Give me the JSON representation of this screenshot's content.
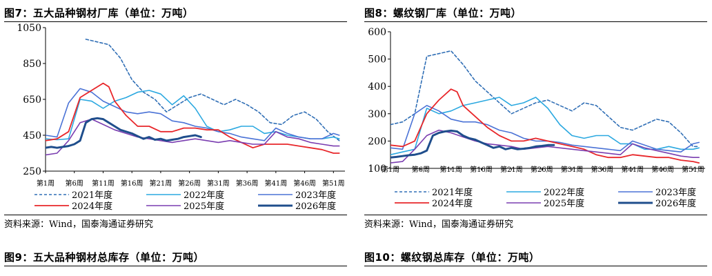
{
  "figures": [
    {
      "title": "图7：五大品种钢材厂库（单位：万吨）",
      "source": "资料来源：Wind，国泰海通证券研究"
    },
    {
      "title": "图8：螺纹钢厂库（单位：万吨）",
      "source": "资料来源：Wind，国泰海通证券研究"
    },
    {
      "title": "图9：五大品种钢材总库存（单位：万吨）"
    },
    {
      "title": "图10：螺纹钢总库存（单位：万吨）"
    }
  ],
  "chart_data": [
    {
      "type": "line",
      "title": "",
      "xlabel": "",
      "ylabel": "",
      "x_range": [
        1,
        53
      ],
      "ylim": [
        250,
        1050
      ],
      "y_ticks": [
        "1050",
        "850",
        "650",
        "450",
        "250"
      ],
      "x_ticks": [
        "第1周",
        "第6周",
        "第11周",
        "第16周",
        "第21周",
        "第26周",
        "第31周",
        "第36周",
        "第41周",
        "第46周",
        "第51周"
      ],
      "legend_position": "bottom",
      "series": [
        {
          "name": "2021年度",
          "color": "#2f6eb5",
          "dash": true,
          "width": 1.6,
          "x": [
            8,
            10,
            12,
            14,
            16,
            18,
            20,
            22,
            24,
            26,
            28,
            30,
            32,
            34,
            36,
            38,
            40,
            42,
            44,
            46,
            48,
            50,
            52
          ],
          "values": [
            985,
            970,
            955,
            880,
            760,
            690,
            650,
            580,
            620,
            660,
            680,
            650,
            620,
            650,
            620,
            580,
            520,
            510,
            560,
            580,
            540,
            470,
            420
          ]
        },
        {
          "name": "2022年度",
          "color": "#2aa8e0",
          "dash": false,
          "width": 1.6,
          "x": [
            1,
            3,
            5,
            7,
            9,
            11,
            13,
            15,
            17,
            19,
            21,
            23,
            25,
            27,
            29,
            31,
            33,
            35,
            37,
            39,
            41,
            43,
            45,
            47,
            49,
            51,
            52
          ],
          "values": [
            430,
            425,
            430,
            650,
            640,
            600,
            640,
            660,
            690,
            700,
            680,
            620,
            670,
            600,
            500,
            470,
            480,
            500,
            500,
            460,
            470,
            450,
            440,
            430,
            430,
            440,
            430
          ]
        },
        {
          "name": "2023年度",
          "color": "#4a72d6",
          "dash": false,
          "width": 1.6,
          "x": [
            1,
            3,
            5,
            7,
            9,
            11,
            13,
            15,
            17,
            19,
            21,
            23,
            25,
            27,
            29,
            31,
            33,
            35,
            37,
            39,
            41,
            43,
            45,
            47,
            49,
            51,
            52
          ],
          "values": [
            450,
            440,
            630,
            710,
            690,
            640,
            610,
            580,
            570,
            580,
            570,
            530,
            520,
            500,
            490,
            470,
            460,
            440,
            430,
            420,
            490,
            460,
            440,
            430,
            430,
            460,
            450
          ]
        },
        {
          "name": "2024年度",
          "color": "#e8262a",
          "dash": false,
          "width": 1.8,
          "x": [
            1,
            3,
            5,
            7,
            9,
            11,
            12,
            13,
            15,
            17,
            19,
            21,
            23,
            25,
            27,
            29,
            31,
            33,
            35,
            37,
            39,
            41,
            43,
            45,
            47,
            49,
            51,
            52
          ],
          "values": [
            420,
            430,
            470,
            660,
            700,
            740,
            720,
            640,
            560,
            500,
            500,
            470,
            470,
            490,
            490,
            480,
            480,
            440,
            410,
            380,
            400,
            400,
            400,
            390,
            380,
            370,
            350,
            350
          ]
        },
        {
          "name": "2025年度",
          "color": "#7a3db0",
          "dash": false,
          "width": 1.6,
          "x": [
            1,
            3,
            5,
            7,
            9,
            11,
            13,
            15,
            17,
            19,
            21,
            23,
            25,
            27,
            29,
            31,
            33,
            35,
            37,
            39,
            41,
            43,
            45,
            47,
            49,
            51,
            52
          ],
          "values": [
            340,
            350,
            420,
            520,
            540,
            510,
            480,
            460,
            440,
            430,
            420,
            410,
            420,
            430,
            420,
            410,
            420,
            410,
            400,
            400,
            470,
            440,
            430,
            410,
            400,
            390,
            390
          ]
        },
        {
          "name": "2026年度",
          "color": "#1f4e8c",
          "dash": false,
          "width": 3,
          "x": [
            1,
            2,
            3,
            4,
            5,
            6,
            7,
            8,
            9,
            10,
            11,
            12,
            13,
            14,
            15,
            16,
            17,
            18,
            19,
            20,
            21,
            22,
            23,
            24,
            25,
            26,
            27,
            28
          ],
          "values": [
            380,
            385,
            380,
            385,
            390,
            400,
            420,
            520,
            540,
            545,
            540,
            520,
            500,
            480,
            470,
            460,
            445,
            430,
            440,
            425,
            430,
            420,
            425,
            430,
            440,
            445,
            450,
            440
          ]
        }
      ]
    },
    {
      "type": "line",
      "title": "",
      "xlabel": "",
      "ylabel": "",
      "x_range": [
        1,
        53
      ],
      "ylim": [
        100,
        600
      ],
      "y_ticks": [
        "600",
        "500",
        "400",
        "300",
        "200",
        "100"
      ],
      "x_ticks": [
        "第1周",
        "第6周",
        "第11周",
        "第16周",
        "第21周",
        "第26周",
        "第31周",
        "第36周",
        "第41周",
        "第46周",
        "第51周"
      ],
      "legend_position": "bottom",
      "series": [
        {
          "name": "2021年度",
          "color": "#2f6eb5",
          "dash": true,
          "width": 1.6,
          "x": [
            1,
            3,
            5,
            7,
            9,
            11,
            13,
            15,
            17,
            19,
            21,
            23,
            25,
            27,
            29,
            31,
            33,
            35,
            37,
            39,
            41,
            43,
            45,
            47,
            49,
            51,
            52
          ],
          "values": [
            260,
            270,
            300,
            510,
            520,
            530,
            480,
            420,
            380,
            340,
            300,
            320,
            340,
            350,
            330,
            310,
            340,
            330,
            290,
            250,
            240,
            260,
            280,
            270,
            230,
            180,
            180
          ]
        },
        {
          "name": "2022年度",
          "color": "#2aa8e0",
          "dash": false,
          "width": 1.6,
          "x": [
            1,
            3,
            5,
            7,
            9,
            11,
            13,
            15,
            17,
            19,
            21,
            23,
            25,
            27,
            29,
            31,
            33,
            35,
            37,
            39,
            41,
            43,
            45,
            47,
            49,
            51,
            52
          ],
          "values": [
            150,
            160,
            170,
            320,
            300,
            310,
            330,
            340,
            350,
            360,
            330,
            340,
            360,
            320,
            260,
            220,
            210,
            220,
            220,
            190,
            190,
            170,
            170,
            180,
            170,
            170,
            175
          ]
        },
        {
          "name": "2023年度",
          "color": "#4a72d6",
          "dash": false,
          "width": 1.6,
          "x": [
            1,
            3,
            5,
            7,
            9,
            11,
            13,
            15,
            17,
            19,
            21,
            23,
            25,
            27,
            29,
            31,
            33,
            35,
            37,
            39,
            41,
            43,
            45,
            47,
            49,
            51,
            52
          ],
          "values": [
            175,
            170,
            300,
            330,
            310,
            280,
            270,
            270,
            260,
            240,
            230,
            210,
            200,
            200,
            195,
            185,
            180,
            175,
            170,
            165,
            200,
            185,
            170,
            165,
            160,
            190,
            195
          ]
        },
        {
          "name": "2024年度",
          "color": "#e8262a",
          "dash": false,
          "width": 1.8,
          "x": [
            1,
            3,
            5,
            7,
            9,
            11,
            12,
            13,
            15,
            17,
            19,
            21,
            23,
            25,
            27,
            29,
            31,
            33,
            35,
            37,
            39,
            41,
            43,
            45,
            47,
            49,
            51,
            52
          ],
          "values": [
            185,
            180,
            200,
            300,
            350,
            390,
            380,
            330,
            290,
            250,
            220,
            200,
            200,
            210,
            200,
            190,
            180,
            170,
            150,
            140,
            140,
            150,
            145,
            140,
            140,
            130,
            125,
            120
          ]
        },
        {
          "name": "2025年度",
          "color": "#7a3db0",
          "dash": false,
          "width": 1.6,
          "x": [
            1,
            3,
            5,
            7,
            9,
            11,
            13,
            15,
            17,
            19,
            21,
            23,
            25,
            27,
            29,
            31,
            33,
            35,
            37,
            39,
            41,
            43,
            45,
            47,
            49,
            51,
            52
          ],
          "values": [
            120,
            125,
            170,
            220,
            240,
            230,
            215,
            200,
            190,
            185,
            180,
            170,
            175,
            180,
            175,
            170,
            165,
            160,
            155,
            150,
            190,
            175,
            165,
            155,
            145,
            140,
            140
          ]
        },
        {
          "name": "2026年度",
          "color": "#1f4e8c",
          "dash": false,
          "width": 3,
          "x": [
            1,
            2,
            3,
            4,
            5,
            6,
            7,
            8,
            9,
            10,
            11,
            12,
            13,
            14,
            15,
            16,
            17,
            18,
            19,
            20,
            21,
            22,
            23,
            24,
            25,
            26,
            27,
            28
          ],
          "values": [
            140,
            142,
            145,
            148,
            150,
            155,
            165,
            220,
            230,
            235,
            238,
            235,
            220,
            210,
            205,
            195,
            185,
            175,
            180,
            170,
            175,
            170,
            172,
            175,
            180,
            182,
            185,
            185
          ]
        }
      ]
    }
  ]
}
